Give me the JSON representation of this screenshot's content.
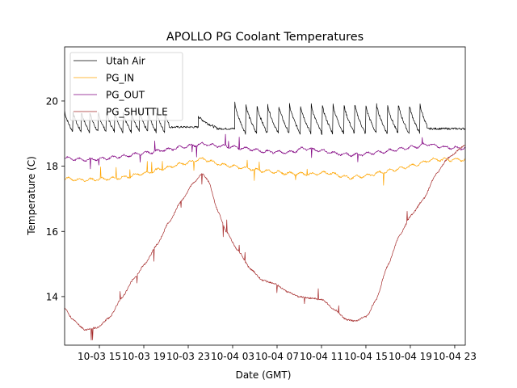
{
  "chart_data": {
    "type": "line",
    "title": "APOLLO PG Coolant Temperatures",
    "xlabel": "Date (GMT)",
    "ylabel": "Temperature (C)",
    "x_unit": "hours since 10-03 00:00 GMT",
    "xlim": [
      11.87,
      47.95
    ],
    "ylim": [
      12.51,
      21.66
    ],
    "grid": false,
    "legend_position": "upper-left",
    "xticks": [
      {
        "value": 15,
        "label": "10-03 15"
      },
      {
        "value": 19,
        "label": "10-03 19"
      },
      {
        "value": 23,
        "label": "10-03 23"
      },
      {
        "value": 27,
        "label": "10-04 03"
      },
      {
        "value": 31,
        "label": "10-04 07"
      },
      {
        "value": 35,
        "label": "10-04 11"
      },
      {
        "value": 39,
        "label": "10-04 15"
      },
      {
        "value": 43,
        "label": "10-04 19"
      },
      {
        "value": 47,
        "label": "10-04 23"
      }
    ],
    "yticks": [
      {
        "value": 14,
        "label": "14"
      },
      {
        "value": 16,
        "label": "16"
      },
      {
        "value": 18,
        "label": "18"
      },
      {
        "value": 20,
        "label": "20"
      }
    ],
    "series": [
      {
        "name": "Utah Air",
        "color": "#000000",
        "pattern": "sawtooth",
        "segments": [
          {
            "start": 11.87,
            "end": 21.3,
            "period": 0.75,
            "low": 19.05,
            "high": 19.7
          },
          {
            "start": 21.3,
            "end": 23.9,
            "flat": 19.2
          },
          {
            "start": 23.9,
            "end": 25.7,
            "period": 1.8,
            "low": 19.15,
            "high": 19.55
          },
          {
            "start": 25.7,
            "end": 27.2,
            "flat": 19.15
          },
          {
            "start": 27.2,
            "end": 44.5,
            "period": 0.98,
            "low": 19.0,
            "high": 19.95
          },
          {
            "start": 44.5,
            "end": 47.95,
            "flat": 19.15
          }
        ]
      },
      {
        "name": "PG_IN",
        "color": "#ffa500",
        "x": [
          11.87,
          13.5,
          15.0,
          17.0,
          19.0,
          21.0,
          22.5,
          24.3,
          26.0,
          28.0,
          30.0,
          32.0,
          34.0,
          35.5,
          37.5,
          39.0,
          40.5,
          42.0,
          43.5,
          45.0,
          47.95
        ],
        "y": [
          17.62,
          17.58,
          17.6,
          17.65,
          17.78,
          17.95,
          18.08,
          18.22,
          18.05,
          17.95,
          17.85,
          17.78,
          17.75,
          17.8,
          17.65,
          17.7,
          17.82,
          17.92,
          18.05,
          18.2,
          18.2
        ]
      },
      {
        "name": "PG_OUT",
        "color": "#800080",
        "x": [
          11.87,
          13.5,
          15.0,
          17.0,
          19.0,
          21.0,
          23.0,
          24.3,
          26.0,
          28.0,
          30.0,
          32.0,
          33.5,
          35.0,
          36.5,
          38.0,
          40.0,
          42.0,
          43.5,
          44.5,
          46.0,
          47.95
        ],
        "y": [
          18.25,
          18.2,
          18.22,
          18.3,
          18.4,
          18.5,
          18.62,
          18.68,
          18.62,
          18.55,
          18.45,
          18.42,
          18.55,
          18.48,
          18.38,
          18.35,
          18.42,
          18.52,
          18.6,
          18.68,
          18.58,
          18.55
        ]
      },
      {
        "name": "PG_SHUTTLE",
        "color": "#a52a2a",
        "x": [
          11.87,
          12.6,
          13.7,
          14.8,
          15.9,
          17.0,
          18.1,
          19.1,
          20.2,
          21.3,
          22.4,
          23.5,
          24.3,
          24.8,
          25.7,
          26.4,
          27.5,
          28.6,
          29.7,
          30.8,
          31.9,
          33.0,
          34.0,
          35.1,
          36.2,
          37.2,
          38.0,
          39.1,
          39.9,
          40.96,
          42.05,
          43.1,
          44.2,
          45.3,
          46.4,
          47.95
        ],
        "y": [
          13.65,
          13.3,
          12.98,
          13.05,
          13.35,
          13.95,
          14.55,
          15.0,
          15.6,
          16.3,
          16.95,
          17.5,
          17.78,
          17.55,
          16.6,
          16.0,
          15.4,
          14.85,
          14.5,
          14.4,
          14.15,
          14.0,
          13.95,
          13.9,
          13.6,
          13.3,
          13.25,
          13.4,
          13.9,
          14.95,
          15.9,
          16.5,
          17.0,
          17.75,
          18.25,
          18.65
        ]
      }
    ]
  }
}
